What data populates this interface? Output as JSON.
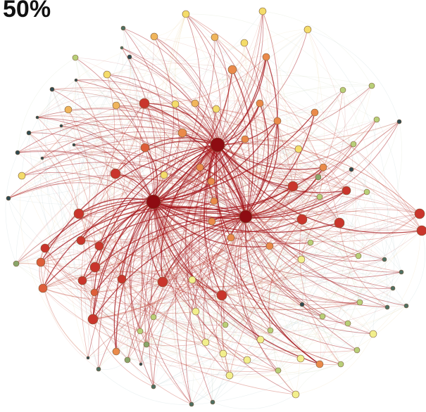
{
  "title": "50%",
  "palette": {
    "dark_red": "#8e0c12",
    "red": "#c9352c",
    "orange_red": "#dd5e3a",
    "orange": "#ea8a4a",
    "amber": "#f0b55c",
    "yellow": "#f4dc6a",
    "pale_yellow": "#f2ef8c",
    "light_green": "#b8cf78",
    "green": "#8aa66a",
    "teal": "#4e7063",
    "dark_teal": "#2f4a52"
  },
  "hubs": [
    0,
    1,
    2
  ]
}
